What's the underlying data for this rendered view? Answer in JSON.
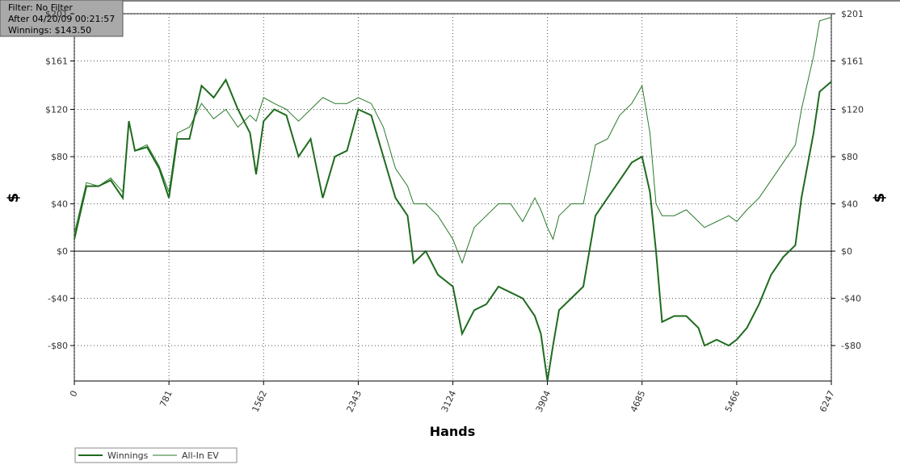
{
  "chart_data": {
    "type": "line",
    "info": [
      "Filter: No Filter",
      "After 04/20/09 00:21:57",
      "Winnings: $143.50"
    ],
    "xlabel": "Hands",
    "ylabel": "$",
    "y2label": "$",
    "grid": true,
    "x": [
      0,
      100,
      200,
      300,
      400,
      450,
      500,
      600,
      700,
      781,
      850,
      950,
      1050,
      1150,
      1250,
      1350,
      1450,
      1500,
      1562,
      1650,
      1750,
      1850,
      1950,
      2050,
      2150,
      2250,
      2343,
      2450,
      2550,
      2650,
      2750,
      2800,
      2900,
      3000,
      3124,
      3200,
      3300,
      3400,
      3500,
      3600,
      3700,
      3800,
      3850,
      3904,
      3950,
      4000,
      4100,
      4200,
      4300,
      4400,
      4500,
      4600,
      4685,
      4750,
      4800,
      4850,
      4950,
      5050,
      5150,
      5200,
      5300,
      5400,
      5466,
      5550,
      5650,
      5750,
      5850,
      5950,
      6000,
      6100,
      6150,
      6247
    ],
    "series": [
      {
        "name": "Winnings",
        "color": "#1e6b1e",
        "width": 2,
        "values": [
          10,
          55,
          55,
          60,
          45,
          110,
          85,
          88,
          70,
          45,
          95,
          95,
          140,
          130,
          145,
          120,
          100,
          65,
          110,
          120,
          115,
          80,
          95,
          45,
          80,
          85,
          120,
          115,
          80,
          45,
          30,
          -10,
          0,
          -20,
          -30,
          -70,
          -50,
          -45,
          -30,
          -35,
          -40,
          -55,
          -70,
          -110,
          -80,
          -50,
          -40,
          -30,
          30,
          45,
          60,
          75,
          80,
          50,
          0,
          -60,
          -55,
          -55,
          -65,
          -80,
          -75,
          -80,
          -75,
          -65,
          -45,
          -20,
          -5,
          5,
          45,
          100,
          135,
          143.5
        ]
      },
      {
        "name": "All-In EV",
        "color": "#2a7a2a",
        "width": 1,
        "values": [
          15,
          58,
          55,
          62,
          50,
          110,
          85,
          90,
          72,
          50,
          100,
          105,
          125,
          112,
          120,
          105,
          115,
          110,
          130,
          125,
          120,
          110,
          120,
          130,
          125,
          125,
          130,
          125,
          105,
          70,
          55,
          40,
          40,
          30,
          10,
          -10,
          20,
          30,
          40,
          40,
          25,
          45,
          35,
          20,
          10,
          30,
          40,
          40,
          90,
          95,
          115,
          125,
          140,
          100,
          40,
          30,
          30,
          35,
          25,
          20,
          25,
          30,
          25,
          35,
          45,
          60,
          75,
          90,
          120,
          165,
          195,
          198
        ]
      }
    ],
    "xlim": [
      0,
      6247
    ],
    "xticks": [
      0,
      781,
      1562,
      2343,
      3124,
      3904,
      4685,
      5466,
      6247
    ],
    "ylim": [
      -110,
      201
    ],
    "yticks": [
      {
        "value": 201,
        "label": "$201"
      },
      {
        "value": 161,
        "label": "$161"
      },
      {
        "value": 120,
        "label": "$120"
      },
      {
        "value": 80,
        "label": "$80"
      },
      {
        "value": 40,
        "label": "$40"
      },
      {
        "value": 0,
        "label": "$0"
      },
      {
        "value": -40,
        "label": "-$40"
      },
      {
        "value": -80,
        "label": "-$80"
      }
    ]
  }
}
